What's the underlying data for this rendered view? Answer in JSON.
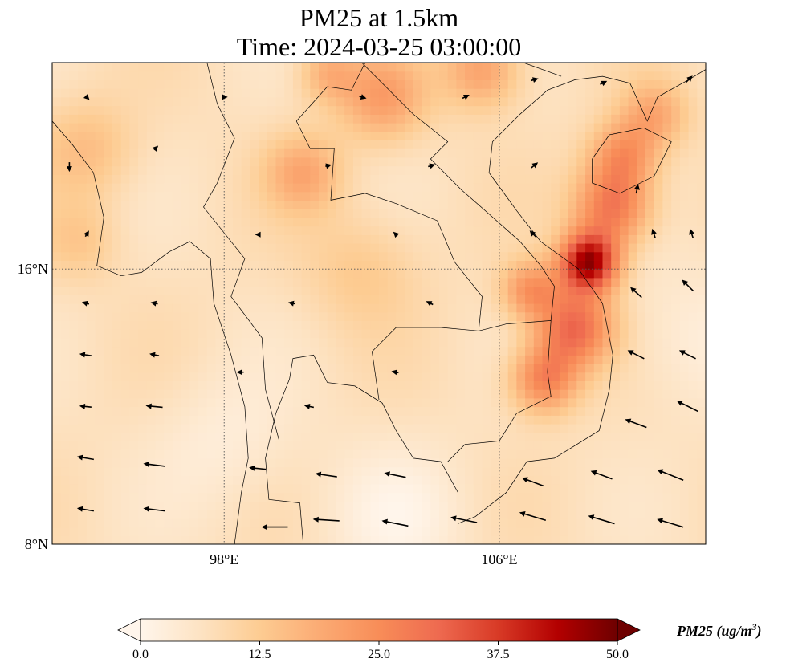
{
  "title_line1": "PM25 at 1.5km",
  "title_line2": "Time: 2024-03-25 03:00:00",
  "axes": {
    "lon_range": [
      93,
      112
    ],
    "lat_range": [
      8,
      22
    ],
    "lon_ticks": [
      {
        "value": 98,
        "label": "98°E"
      },
      {
        "value": 106,
        "label": "106°E"
      }
    ],
    "lat_ticks": [
      {
        "value": 8,
        "label": "8°N"
      },
      {
        "value": 16,
        "label": "16°N"
      }
    ]
  },
  "colorbar": {
    "label": "PM25 (ug/m",
    "label_sup": "3",
    "label_close": ")",
    "range": [
      0,
      50
    ],
    "extend": "both",
    "ticks": [
      "0.0",
      "12.5",
      "25.0",
      "37.5",
      "50.0"
    ],
    "colors": [
      "#fff5eb",
      "#fde3c3",
      "#fdcc92",
      "#fbab74",
      "#f88d58",
      "#ee6a50",
      "#d83a26",
      "#b30000",
      "#6e0000"
    ]
  },
  "chart_data": {
    "type": "heatmap",
    "variable": "PM25",
    "units": "ug/m3",
    "background_value": 7,
    "hotspots": [
      {
        "lon": 108.6,
        "lat": 16.2,
        "value": 38,
        "spread": 0.6
      },
      {
        "lon": 109.3,
        "lat": 17.8,
        "value": 22,
        "spread": 0.8
      },
      {
        "lon": 109.6,
        "lat": 19.3,
        "value": 16,
        "spread": 0.7
      },
      {
        "lon": 108.2,
        "lat": 14.3,
        "value": 24,
        "spread": 0.8
      },
      {
        "lon": 107.3,
        "lat": 12.8,
        "value": 20,
        "spread": 0.7
      },
      {
        "lon": 106.9,
        "lat": 15.4,
        "value": 16,
        "spread": 0.6
      },
      {
        "lon": 102.6,
        "lat": 21.0,
        "value": 14,
        "spread": 0.9
      },
      {
        "lon": 101.0,
        "lat": 21.7,
        "value": 10,
        "spread": 0.6
      },
      {
        "lon": 105.5,
        "lat": 21.8,
        "value": 14,
        "spread": 0.8
      },
      {
        "lon": 110.5,
        "lat": 20.5,
        "value": 12,
        "spread": 0.7
      },
      {
        "lon": 100.3,
        "lat": 18.8,
        "value": 12,
        "spread": 0.8
      },
      {
        "lon": 94.0,
        "lat": 19.5,
        "value": 8,
        "spread": 1.0
      },
      {
        "lon": 93.8,
        "lat": 16.8,
        "value": 6,
        "spread": 0.8
      },
      {
        "lon": 102.0,
        "lat": 16.0,
        "value": 6,
        "spread": 1.2
      },
      {
        "lon": 98.0,
        "lat": 11.0,
        "value": -4,
        "spread": 1.4
      },
      {
        "lon": 103.0,
        "lat": 8.8,
        "value": -5,
        "spread": 1.5
      },
      {
        "lon": 111.5,
        "lat": 14.0,
        "value": -4,
        "spread": 1.5
      }
    ],
    "wind_vectors": [
      {
        "lon": 94,
        "lat": 9,
        "u": -3,
        "v": 0.5
      },
      {
        "lon": 96,
        "lat": 9,
        "u": -4,
        "v": 0.5
      },
      {
        "lon": 99.5,
        "lat": 8.5,
        "u": -5,
        "v": 0
      },
      {
        "lon": 101,
        "lat": 8.7,
        "u": -5,
        "v": 0.3
      },
      {
        "lon": 103,
        "lat": 8.6,
        "u": -5,
        "v": 1
      },
      {
        "lon": 105,
        "lat": 8.7,
        "u": -5,
        "v": 1
      },
      {
        "lon": 107,
        "lat": 8.8,
        "u": -5,
        "v": 1.5
      },
      {
        "lon": 109,
        "lat": 8.7,
        "u": -5,
        "v": 1.5
      },
      {
        "lon": 111,
        "lat": 8.6,
        "u": -5,
        "v": 1.5
      },
      {
        "lon": 94,
        "lat": 10.5,
        "u": -3,
        "v": 0.5
      },
      {
        "lon": 96,
        "lat": 10.3,
        "u": -4,
        "v": 0.5
      },
      {
        "lon": 99,
        "lat": 10.2,
        "u": -3,
        "v": 0.3
      },
      {
        "lon": 101,
        "lat": 10,
        "u": -4,
        "v": 0.6
      },
      {
        "lon": 103,
        "lat": 10,
        "u": -4,
        "v": 0.8
      },
      {
        "lon": 107,
        "lat": 9.8,
        "u": -4,
        "v": 1.5
      },
      {
        "lon": 109,
        "lat": 10,
        "u": -4,
        "v": 1.5
      },
      {
        "lon": 111,
        "lat": 10,
        "u": -5,
        "v": 2
      },
      {
        "lon": 94,
        "lat": 12,
        "u": -2,
        "v": 0.2
      },
      {
        "lon": 96,
        "lat": 12,
        "u": -3,
        "v": 0.3
      },
      {
        "lon": 100.5,
        "lat": 12,
        "u": -1.5,
        "v": 0.3
      },
      {
        "lon": 110,
        "lat": 11.5,
        "u": -4,
        "v": 1.5
      },
      {
        "lon": 111.5,
        "lat": 12,
        "u": -4,
        "v": 2
      },
      {
        "lon": 94,
        "lat": 13.5,
        "u": -2,
        "v": 0.3
      },
      {
        "lon": 96,
        "lat": 13.5,
        "u": -1.5,
        "v": 0.3
      },
      {
        "lon": 98.5,
        "lat": 13,
        "u": -1,
        "v": 0
      },
      {
        "lon": 103,
        "lat": 13,
        "u": -1,
        "v": 0.2
      },
      {
        "lon": 110,
        "lat": 13.5,
        "u": -3,
        "v": 1.5
      },
      {
        "lon": 111.5,
        "lat": 13.5,
        "u": -3,
        "v": 1.5
      },
      {
        "lon": 94,
        "lat": 15,
        "u": -1,
        "v": 0.3
      },
      {
        "lon": 96,
        "lat": 15,
        "u": -1,
        "v": 0.2
      },
      {
        "lon": 100,
        "lat": 15,
        "u": -1,
        "v": 0.2
      },
      {
        "lon": 104,
        "lat": 15,
        "u": -1,
        "v": 0.5
      },
      {
        "lon": 110,
        "lat": 15.3,
        "u": -2,
        "v": 1.8
      },
      {
        "lon": 111.5,
        "lat": 15.5,
        "u": -2,
        "v": 2
      },
      {
        "lon": 94,
        "lat": 17,
        "u": 0.5,
        "v": 0.8
      },
      {
        "lon": 99,
        "lat": 17,
        "u": -0.5,
        "v": 0
      },
      {
        "lon": 103,
        "lat": 17,
        "u": -0.5,
        "v": 0.5
      },
      {
        "lon": 107,
        "lat": 17,
        "u": -1,
        "v": 1
      },
      {
        "lon": 110.5,
        "lat": 17,
        "u": -0.5,
        "v": 1.5
      },
      {
        "lon": 111.6,
        "lat": 17,
        "u": -0.5,
        "v": 1.5
      },
      {
        "lon": 93.5,
        "lat": 19,
        "u": 0,
        "v": -1.5
      },
      {
        "lon": 96,
        "lat": 19.5,
        "u": 0.5,
        "v": 0.5
      },
      {
        "lon": 101,
        "lat": 19,
        "u": 0.8,
        "v": 0.2
      },
      {
        "lon": 104,
        "lat": 19,
        "u": 1,
        "v": 0.3
      },
      {
        "lon": 107,
        "lat": 19,
        "u": 1,
        "v": 0.8
      },
      {
        "lon": 110,
        "lat": 18.3,
        "u": 0.3,
        "v": 1.5
      },
      {
        "lon": 94,
        "lat": 21,
        "u": 0.5,
        "v": -0.5
      },
      {
        "lon": 98,
        "lat": 21,
        "u": 0.5,
        "v": 0
      },
      {
        "lon": 102,
        "lat": 21,
        "u": 1,
        "v": -0.3
      },
      {
        "lon": 105,
        "lat": 21,
        "u": 1,
        "v": 0.5
      },
      {
        "lon": 107,
        "lat": 21.5,
        "u": 1,
        "v": 0.3
      },
      {
        "lon": 109,
        "lat": 21.4,
        "u": 1,
        "v": 0.5
      },
      {
        "lon": 111.5,
        "lat": 21.5,
        "u": 1,
        "v": 1
      }
    ]
  }
}
